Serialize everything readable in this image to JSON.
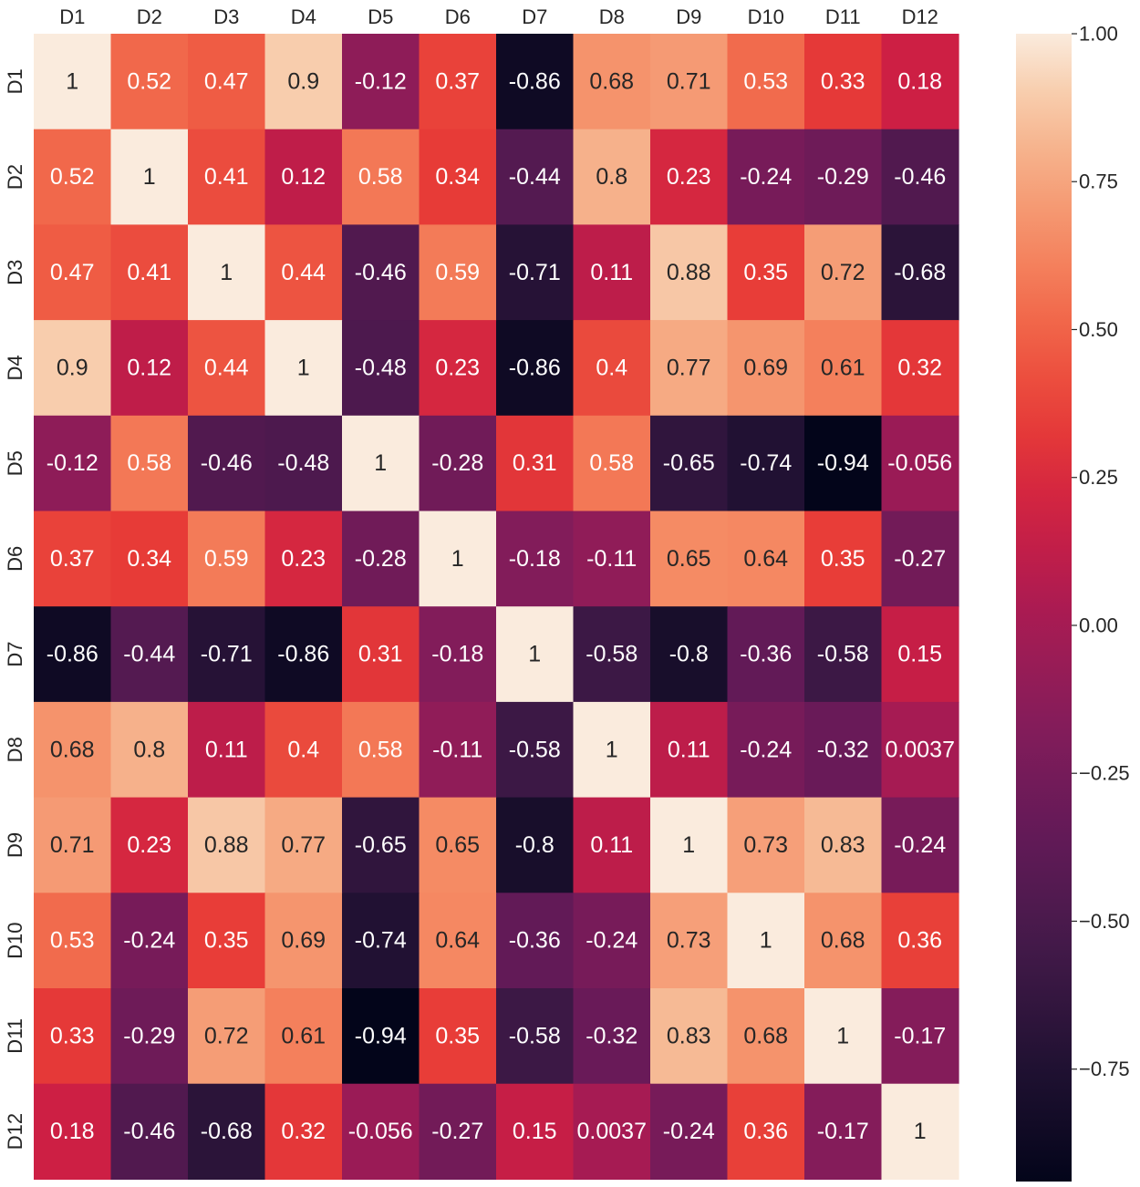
{
  "chart_data": {
    "type": "heatmap",
    "title": "",
    "xlabel": "",
    "ylabel": "",
    "x_labels": [
      "D1",
      "D2",
      "D3",
      "D4",
      "D5",
      "D6",
      "D7",
      "D8",
      "D9",
      "D10",
      "D11",
      "D12"
    ],
    "y_labels": [
      "D1",
      "D2",
      "D3",
      "D4",
      "D5",
      "D6",
      "D7",
      "D8",
      "D9",
      "D10",
      "D11",
      "D12"
    ],
    "values": [
      [
        1,
        0.52,
        0.47,
        0.9,
        -0.12,
        0.37,
        -0.86,
        0.68,
        0.71,
        0.53,
        0.33,
        0.18
      ],
      [
        0.52,
        1,
        0.41,
        0.12,
        0.58,
        0.34,
        -0.44,
        0.8,
        0.23,
        -0.24,
        -0.29,
        -0.46
      ],
      [
        0.47,
        0.41,
        1,
        0.44,
        -0.46,
        0.59,
        -0.71,
        0.11,
        0.88,
        0.35,
        0.72,
        -0.68
      ],
      [
        0.9,
        0.12,
        0.44,
        1,
        -0.48,
        0.23,
        -0.86,
        0.4,
        0.77,
        0.69,
        0.61,
        0.32
      ],
      [
        -0.12,
        0.58,
        -0.46,
        -0.48,
        1,
        -0.28,
        0.31,
        0.58,
        -0.65,
        -0.74,
        -0.94,
        -0.056
      ],
      [
        0.37,
        0.34,
        0.59,
        0.23,
        -0.28,
        1,
        -0.18,
        -0.11,
        0.65,
        0.64,
        0.35,
        -0.27
      ],
      [
        -0.86,
        -0.44,
        -0.71,
        -0.86,
        0.31,
        -0.18,
        1,
        -0.58,
        -0.8,
        -0.36,
        -0.58,
        0.15
      ],
      [
        0.68,
        0.8,
        0.11,
        0.4,
        0.58,
        -0.11,
        -0.58,
        1,
        0.11,
        -0.24,
        -0.32,
        0.0037
      ],
      [
        0.71,
        0.23,
        0.88,
        0.77,
        -0.65,
        0.65,
        -0.8,
        0.11,
        1,
        0.73,
        0.83,
        -0.24
      ],
      [
        0.53,
        -0.24,
        0.35,
        0.69,
        -0.74,
        0.64,
        -0.36,
        -0.24,
        0.73,
        1,
        0.68,
        0.36
      ],
      [
        0.33,
        -0.29,
        0.72,
        0.61,
        -0.94,
        0.35,
        -0.58,
        -0.32,
        0.83,
        0.68,
        1,
        -0.17
      ],
      [
        0.18,
        -0.46,
        -0.68,
        0.32,
        -0.056,
        -0.27,
        0.15,
        0.0037,
        -0.24,
        0.36,
        -0.17,
        1
      ]
    ],
    "colorbar": {
      "range": [
        -0.94,
        1.0
      ],
      "ticks": [
        1.0,
        0.75,
        0.5,
        0.25,
        0.0,
        -0.25,
        -0.5,
        -0.75
      ],
      "tick_labels": [
        "1.00",
        "0.75",
        "0.50",
        "0.25",
        "0.00",
        "−0.25",
        "−0.50",
        "−0.75"
      ],
      "colormap": "rocket"
    },
    "x_axis_position": "top",
    "annotated": true
  }
}
